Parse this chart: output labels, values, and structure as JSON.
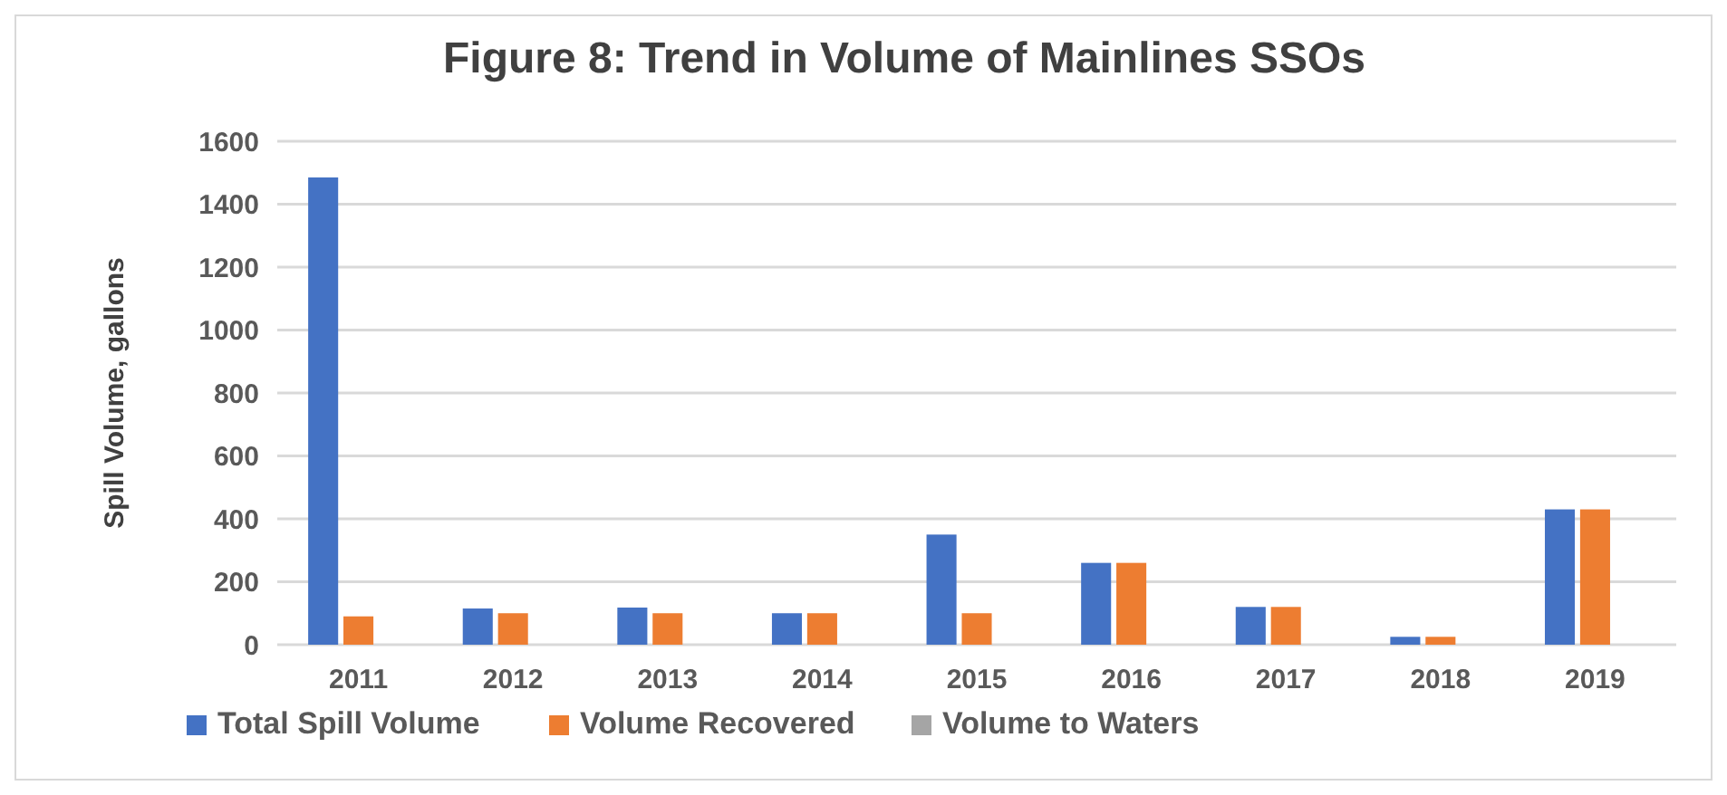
{
  "chart_data": {
    "type": "bar",
    "title": "Figure 8: Trend in Volume of Mainlines SSOs",
    "ylabel": "Spill Volume, gallons",
    "categories": [
      "2011",
      "2012",
      "2013",
      "2014",
      "2015",
      "2016",
      "2017",
      "2018",
      "2019"
    ],
    "series": [
      {
        "name": "Total Spill Volume",
        "color": "#4472c4",
        "values": [
          1485,
          115,
          118,
          100,
          350,
          260,
          120,
          25,
          430
        ]
      },
      {
        "name": "Volume Recovered",
        "color": "#ed7d31",
        "values": [
          90,
          100,
          100,
          100,
          100,
          260,
          120,
          25,
          430
        ]
      },
      {
        "name": "Volume to Waters",
        "color": "#a5a5a5",
        "values": [
          0,
          0,
          0,
          0,
          0,
          0,
          0,
          0,
          0
        ]
      }
    ],
    "ylim": [
      0,
      1600
    ],
    "yticks": [
      0,
      200,
      400,
      600,
      800,
      1000,
      1200,
      1400,
      1600
    ],
    "grid": "y",
    "legend": "bottom"
  }
}
